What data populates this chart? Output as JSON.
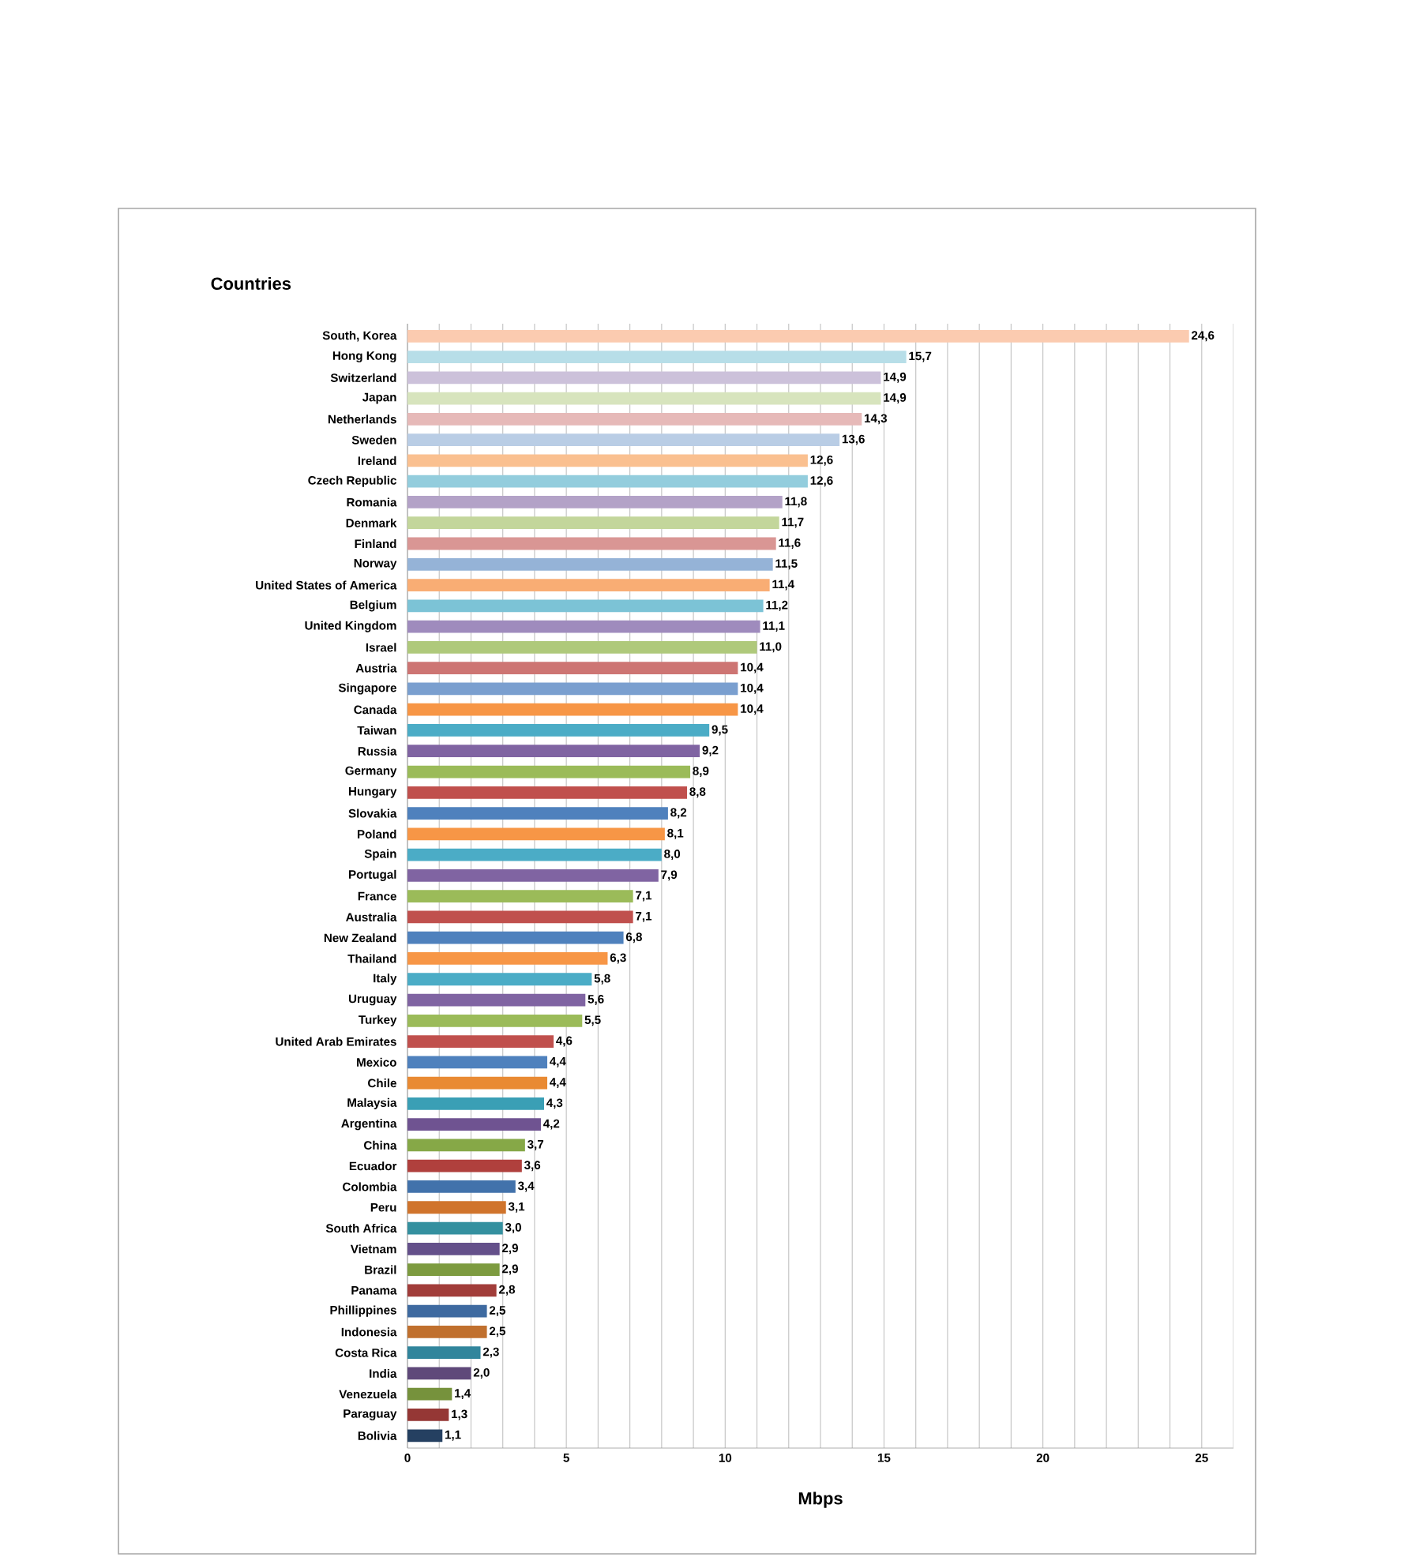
{
  "chart_data": {
    "type": "bar",
    "orientation": "horizontal",
    "ylabel": "Countries",
    "xlabel": "Mbps",
    "categories": [
      "South, Korea",
      "Hong Kong",
      "Switzerland",
      "Japan",
      "Netherlands",
      "Sweden",
      "Ireland",
      "Czech Republic",
      "Romania",
      "Denmark",
      "Finland",
      "Norway",
      "United States of America",
      "Belgium",
      "United Kingdom",
      "Israel",
      "Austria",
      "Singapore",
      "Canada",
      "Taiwan",
      "Russia",
      "Germany",
      "Hungary",
      "Slovakia",
      "Poland",
      "Spain",
      "Portugal",
      "France",
      "Australia",
      "New Zealand",
      "Thailand",
      "Italy",
      "Uruguay",
      "Turkey",
      "United Arab Emirates",
      "Mexico",
      "Chile",
      "Malaysia",
      "Argentina",
      "China",
      "Ecuador",
      "Colombia",
      "Peru",
      "South Africa",
      "Vietnam",
      "Brazil",
      "Panama",
      "Phillippines",
      "Indonesia",
      "Costa Rica",
      "India",
      "Venezuela",
      "Paraguay",
      "Bolivia"
    ],
    "values": [
      24.6,
      15.7,
      14.9,
      14.9,
      14.3,
      13.6,
      12.6,
      12.6,
      11.8,
      11.7,
      11.6,
      11.5,
      11.4,
      11.2,
      11.1,
      11.0,
      10.4,
      10.4,
      10.4,
      9.5,
      9.2,
      8.9,
      8.8,
      8.2,
      8.1,
      8.0,
      7.9,
      7.1,
      7.1,
      6.8,
      6.3,
      5.8,
      5.6,
      5.5,
      4.6,
      4.4,
      4.4,
      4.3,
      4.2,
      3.7,
      3.6,
      3.4,
      3.1,
      3.0,
      2.9,
      2.9,
      2.8,
      2.5,
      2.5,
      2.3,
      2.0,
      1.4,
      1.3,
      1.1
    ],
    "value_labels": [
      "24,6",
      "15,7",
      "14,9",
      "14,9",
      "14,3",
      "13,6",
      "12,6",
      "12,6",
      "11,8",
      "11,7",
      "11,6",
      "11,5",
      "11,4",
      "11,2",
      "11,1",
      "11,0",
      "10,4",
      "10,4",
      "10,4",
      "9,5",
      "9,2",
      "8,9",
      "8,8",
      "8,2",
      "8,1",
      "8,0",
      "7,9",
      "7,1",
      "7,1",
      "6,8",
      "6,3",
      "5,8",
      "5,6",
      "5,5",
      "4,6",
      "4,4",
      "4,4",
      "4,3",
      "4,2",
      "3,7",
      "3,6",
      "3,4",
      "3,1",
      "3,0",
      "2,9",
      "2,9",
      "2,8",
      "2,5",
      "2,5",
      "2,3",
      "2,0",
      "1,4",
      "1,3",
      "1,1"
    ],
    "colors": [
      "#fbcbb0",
      "#b7dee8",
      "#ccc1da",
      "#d7e4bd",
      "#e6b9b8",
      "#b9cde5",
      "#fac090",
      "#93cddd",
      "#b3a2c7",
      "#c3d69b",
      "#d99694",
      "#95b3d7",
      "#f9ad74",
      "#7cc3d6",
      "#9f8bbd",
      "#afc97b",
      "#cd7573",
      "#7a9fcf",
      "#f79646",
      "#4bacc6",
      "#8064a2",
      "#9bbb59",
      "#c0504d",
      "#4f81bd",
      "#f79646",
      "#4bacc6",
      "#8064a2",
      "#9bbb59",
      "#c0504d",
      "#4f81bd",
      "#f79646",
      "#4bacc6",
      "#8064a2",
      "#9bbb59",
      "#c0504d",
      "#4f81bd",
      "#e98a33",
      "#3a9fb5",
      "#6f5391",
      "#86a847",
      "#b0403d",
      "#4272ab",
      "#d0742c",
      "#34909f",
      "#64508a",
      "#7d9b40",
      "#a13d3a",
      "#3e6aa0",
      "#c0702e",
      "#31859c",
      "#5f497a",
      "#76923c",
      "#953735",
      "#254061"
    ],
    "xlim": [
      0,
      26
    ],
    "xticks": [
      0,
      5,
      10,
      15,
      20,
      25
    ],
    "grid": "x"
  }
}
